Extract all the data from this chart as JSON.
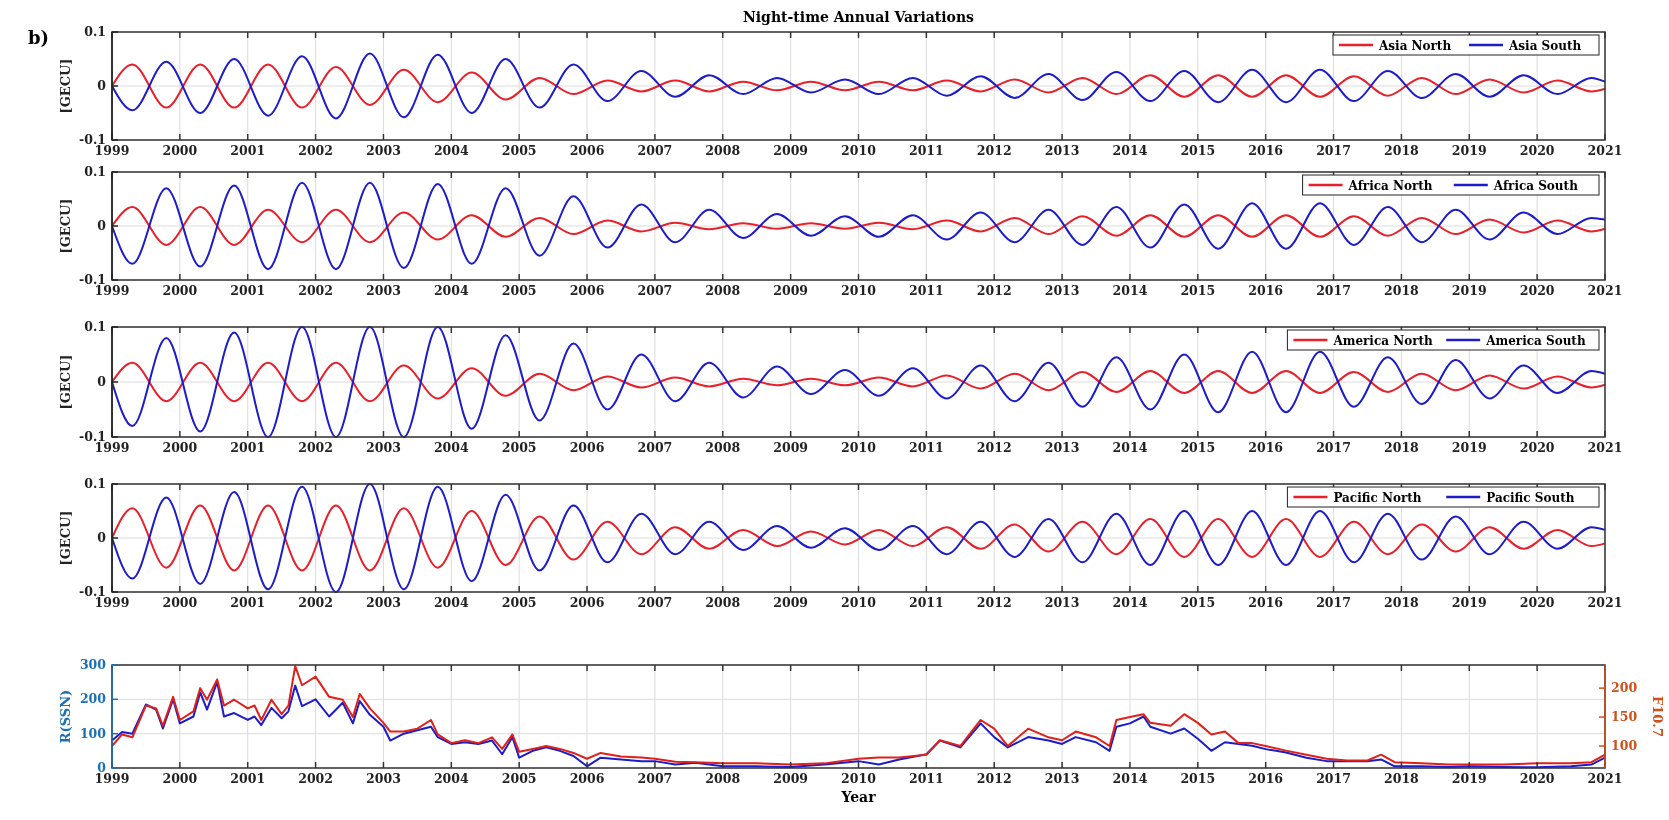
{
  "chart_data": [
    {
      "type": "line",
      "title": "Night-time Annual Variations",
      "annotations": [
        "b)"
      ],
      "ylabel": "[GECU]",
      "xlim": [
        1999,
        2021
      ],
      "xticks": [
        1999,
        2000,
        2001,
        2002,
        2003,
        2004,
        2005,
        2006,
        2007,
        2008,
        2009,
        2010,
        2011,
        2012,
        2013,
        2014,
        2015,
        2016,
        2017,
        2018,
        2019,
        2020,
        2021
      ],
      "ylim": [
        -0.1,
        0.1
      ],
      "yticks": [
        -0.1,
        0,
        0.1
      ],
      "grid": true,
      "legend": "top right",
      "x": [
        1999,
        1999.3,
        1999.8,
        2000.3,
        2000.8,
        2001.3,
        2001.8,
        2002.3,
        2002.8,
        2003.3,
        2003.8,
        2004.3,
        2004.8,
        2005.3,
        2005.8,
        2006.3,
        2006.8,
        2007.3,
        2007.8,
        2008.3,
        2008.8,
        2009.3,
        2009.8,
        2010.3,
        2010.8,
        2011.3,
        2011.8,
        2012.3,
        2012.8,
        2013.3,
        2013.8,
        2014.3,
        2014.8,
        2015.3,
        2015.8,
        2016.3,
        2016.8,
        2017.3,
        2017.8,
        2018.3,
        2018.8,
        2019.3,
        2019.8,
        2020.3,
        2020.8,
        2021
      ],
      "series": [
        {
          "name": "Asia North",
          "color": "#e8202a",
          "values": [
            0,
            0.04,
            -0.04,
            0.04,
            -0.04,
            0.04,
            -0.04,
            0.035,
            -0.035,
            0.03,
            -0.03,
            0.025,
            -0.025,
            0.015,
            -0.015,
            0.01,
            -0.01,
            0.01,
            -0.01,
            0.008,
            -0.008,
            0.008,
            -0.008,
            0.008,
            -0.008,
            0.01,
            -0.01,
            0.012,
            -0.012,
            0.015,
            -0.015,
            0.02,
            -0.02,
            0.02,
            -0.02,
            0.02,
            -0.02,
            0.018,
            -0.018,
            0.015,
            -0.015,
            0.012,
            -0.012,
            0.01,
            -0.01,
            -0.005
          ]
        },
        {
          "name": "Asia South",
          "color": "#1c1cc8",
          "values": [
            0,
            -0.045,
            0.045,
            -0.05,
            0.05,
            -0.055,
            0.055,
            -0.06,
            0.06,
            -0.058,
            0.058,
            -0.05,
            0.05,
            -0.04,
            0.04,
            -0.028,
            0.028,
            -0.02,
            0.02,
            -0.015,
            0.015,
            -0.012,
            0.012,
            -0.015,
            0.015,
            -0.018,
            0.018,
            -0.022,
            0.022,
            -0.026,
            0.026,
            -0.028,
            0.028,
            -0.03,
            0.03,
            -0.03,
            0.03,
            -0.028,
            0.028,
            -0.022,
            0.022,
            -0.02,
            0.02,
            -0.015,
            0.015,
            0.008
          ]
        }
      ]
    },
    {
      "type": "line",
      "ylabel": "[GECU]",
      "xlim": [
        1999,
        2021
      ],
      "xticks": [
        1999,
        2000,
        2001,
        2002,
        2003,
        2004,
        2005,
        2006,
        2007,
        2008,
        2009,
        2010,
        2011,
        2012,
        2013,
        2014,
        2015,
        2016,
        2017,
        2018,
        2019,
        2020,
        2021
      ],
      "ylim": [
        -0.1,
        0.1
      ],
      "yticks": [
        -0.1,
        0,
        0.1
      ],
      "grid": true,
      "legend": "top right",
      "x": [
        1999,
        1999.3,
        1999.8,
        2000.3,
        2000.8,
        2001.3,
        2001.8,
        2002.3,
        2002.8,
        2003.3,
        2003.8,
        2004.3,
        2004.8,
        2005.3,
        2005.8,
        2006.3,
        2006.8,
        2007.3,
        2007.8,
        2008.3,
        2008.8,
        2009.3,
        2009.8,
        2010.3,
        2010.8,
        2011.3,
        2011.8,
        2012.3,
        2012.8,
        2013.3,
        2013.8,
        2014.3,
        2014.8,
        2015.3,
        2015.8,
        2016.3,
        2016.8,
        2017.3,
        2017.8,
        2018.3,
        2018.8,
        2019.3,
        2019.8,
        2020.3,
        2020.8,
        2021
      ],
      "series": [
        {
          "name": "Africa North",
          "color": "#e8202a",
          "values": [
            0,
            0.035,
            -0.035,
            0.035,
            -0.035,
            0.03,
            -0.03,
            0.03,
            -0.03,
            0.025,
            -0.025,
            0.02,
            -0.02,
            0.015,
            -0.015,
            0.01,
            -0.01,
            0.006,
            -0.006,
            0.005,
            -0.005,
            0.005,
            -0.005,
            0.006,
            -0.006,
            0.01,
            -0.01,
            0.015,
            -0.015,
            0.018,
            -0.018,
            0.02,
            -0.02,
            0.02,
            -0.02,
            0.02,
            -0.02,
            0.018,
            -0.018,
            0.015,
            -0.015,
            0.012,
            -0.012,
            0.01,
            -0.01,
            -0.005
          ]
        },
        {
          "name": "Africa South",
          "color": "#1c1cc8",
          "values": [
            0,
            -0.07,
            0.07,
            -0.075,
            0.075,
            -0.08,
            0.08,
            -0.08,
            0.08,
            -0.078,
            0.078,
            -0.07,
            0.07,
            -0.055,
            0.055,
            -0.04,
            0.04,
            -0.03,
            0.03,
            -0.022,
            0.022,
            -0.018,
            0.018,
            -0.02,
            0.02,
            -0.025,
            0.025,
            -0.03,
            0.03,
            -0.035,
            0.035,
            -0.04,
            0.04,
            -0.042,
            0.042,
            -0.042,
            0.042,
            -0.035,
            0.035,
            -0.03,
            0.03,
            -0.025,
            0.025,
            -0.015,
            0.015,
            0.012
          ]
        }
      ]
    },
    {
      "type": "line",
      "ylabel": "[GECU]",
      "xlim": [
        1999,
        2021
      ],
      "xticks": [
        1999,
        2000,
        2001,
        2002,
        2003,
        2004,
        2005,
        2006,
        2007,
        2008,
        2009,
        2010,
        2011,
        2012,
        2013,
        2014,
        2015,
        2016,
        2017,
        2018,
        2019,
        2020,
        2021
      ],
      "ylim": [
        -0.1,
        0.1
      ],
      "yticks": [
        -0.1,
        0,
        0.1
      ],
      "grid": true,
      "legend": "top right",
      "x": [
        1999,
        1999.3,
        1999.8,
        2000.3,
        2000.8,
        2001.3,
        2001.8,
        2002.3,
        2002.8,
        2003.3,
        2003.8,
        2004.3,
        2004.8,
        2005.3,
        2005.8,
        2006.3,
        2006.8,
        2007.3,
        2007.8,
        2008.3,
        2008.8,
        2009.3,
        2009.8,
        2010.3,
        2010.8,
        2011.3,
        2011.8,
        2012.3,
        2012.8,
        2013.3,
        2013.8,
        2014.3,
        2014.8,
        2015.3,
        2015.8,
        2016.3,
        2016.8,
        2017.3,
        2017.8,
        2018.3,
        2018.8,
        2019.3,
        2019.8,
        2020.3,
        2020.8,
        2021
      ],
      "series": [
        {
          "name": "America North",
          "color": "#e8202a",
          "values": [
            0,
            0.035,
            -0.035,
            0.035,
            -0.035,
            0.035,
            -0.035,
            0.035,
            -0.035,
            0.03,
            -0.03,
            0.025,
            -0.025,
            0.015,
            -0.015,
            0.01,
            -0.01,
            0.008,
            -0.008,
            0.006,
            -0.006,
            0.006,
            -0.006,
            0.008,
            -0.008,
            0.012,
            -0.012,
            0.015,
            -0.015,
            0.018,
            -0.018,
            0.02,
            -0.02,
            0.02,
            -0.02,
            0.02,
            -0.02,
            0.018,
            -0.018,
            0.015,
            -0.015,
            0.012,
            -0.012,
            0.01,
            -0.01,
            -0.005
          ]
        },
        {
          "name": "America South",
          "color": "#1c1cc8",
          "values": [
            0,
            -0.08,
            0.08,
            -0.09,
            0.09,
            -0.1,
            0.1,
            -0.1,
            0.1,
            -0.1,
            0.1,
            -0.085,
            0.085,
            -0.07,
            0.07,
            -0.05,
            0.05,
            -0.035,
            0.035,
            -0.028,
            0.028,
            -0.022,
            0.022,
            -0.025,
            0.025,
            -0.03,
            0.03,
            -0.035,
            0.035,
            -0.045,
            0.045,
            -0.05,
            0.05,
            -0.055,
            0.055,
            -0.055,
            0.055,
            -0.045,
            0.045,
            -0.04,
            0.04,
            -0.03,
            0.03,
            -0.02,
            0.02,
            0.015
          ]
        }
      ]
    },
    {
      "type": "line",
      "ylabel": "[GECU]",
      "xlim": [
        1999,
        2021
      ],
      "xticks": [
        1999,
        2000,
        2001,
        2002,
        2003,
        2004,
        2005,
        2006,
        2007,
        2008,
        2009,
        2010,
        2011,
        2012,
        2013,
        2014,
        2015,
        2016,
        2017,
        2018,
        2019,
        2020,
        2021
      ],
      "ylim": [
        -0.1,
        0.1
      ],
      "yticks": [
        -0.1,
        0,
        0.1
      ],
      "grid": true,
      "legend": "top right",
      "x": [
        1999,
        1999.3,
        1999.8,
        2000.3,
        2000.8,
        2001.3,
        2001.8,
        2002.3,
        2002.8,
        2003.3,
        2003.8,
        2004.3,
        2004.8,
        2005.3,
        2005.8,
        2006.3,
        2006.8,
        2007.3,
        2007.8,
        2008.3,
        2008.8,
        2009.3,
        2009.8,
        2010.3,
        2010.8,
        2011.3,
        2011.8,
        2012.3,
        2012.8,
        2013.3,
        2013.8,
        2014.3,
        2014.8,
        2015.3,
        2015.8,
        2016.3,
        2016.8,
        2017.3,
        2017.8,
        2018.3,
        2018.8,
        2019.3,
        2019.8,
        2020.3,
        2020.8,
        2021
      ],
      "series": [
        {
          "name": "Pacific North",
          "color": "#e8202a",
          "values": [
            0,
            0.055,
            -0.055,
            0.06,
            -0.06,
            0.06,
            -0.06,
            0.06,
            -0.06,
            0.055,
            -0.055,
            0.05,
            -0.05,
            0.04,
            -0.04,
            0.03,
            -0.03,
            0.02,
            -0.02,
            0.015,
            -0.015,
            0.012,
            -0.012,
            0.015,
            -0.015,
            0.02,
            -0.02,
            0.025,
            -0.025,
            0.03,
            -0.03,
            0.035,
            -0.035,
            0.035,
            -0.035,
            0.035,
            -0.035,
            0.03,
            -0.03,
            0.025,
            -0.025,
            0.02,
            -0.02,
            0.015,
            -0.015,
            -0.01
          ]
        },
        {
          "name": "Pacific South",
          "color": "#1c1cc8",
          "values": [
            0,
            -0.075,
            0.075,
            -0.085,
            0.085,
            -0.095,
            0.095,
            -0.1,
            0.1,
            -0.095,
            0.095,
            -0.08,
            0.08,
            -0.06,
            0.06,
            -0.045,
            0.045,
            -0.03,
            0.03,
            -0.022,
            0.022,
            -0.018,
            0.018,
            -0.022,
            0.022,
            -0.03,
            0.03,
            -0.035,
            0.035,
            -0.045,
            0.045,
            -0.05,
            0.05,
            -0.05,
            0.05,
            -0.05,
            0.05,
            -0.045,
            0.045,
            -0.04,
            0.04,
            -0.03,
            0.03,
            -0.02,
            0.02,
            0.015
          ]
        }
      ]
    },
    {
      "type": "line",
      "xlabel": "Year",
      "ylabel": "R(SSN)",
      "y2label": "F10.7",
      "xlim": [
        1999,
        2021
      ],
      "xticks": [
        1999,
        2000,
        2001,
        2002,
        2003,
        2004,
        2005,
        2006,
        2007,
        2008,
        2009,
        2010,
        2011,
        2012,
        2013,
        2014,
        2015,
        2016,
        2017,
        2018,
        2019,
        2020,
        2021
      ],
      "ylim": [
        0,
        300
      ],
      "yticks": [
        0,
        100,
        200,
        300
      ],
      "y2lim": [
        62,
        240
      ],
      "y2ticks": [
        100,
        150,
        200
      ],
      "grid": true,
      "x": [
        1999,
        1999.15,
        1999.3,
        1999.5,
        1999.65,
        1999.75,
        1999.9,
        2000,
        2000.2,
        2000.3,
        2000.4,
        2000.55,
        2000.65,
        2000.8,
        2001,
        2001.1,
        2001.2,
        2001.35,
        2001.5,
        2001.6,
        2001.7,
        2001.8,
        2002,
        2002.2,
        2002.4,
        2002.55,
        2002.65,
        2002.8,
        2003,
        2003.1,
        2003.3,
        2003.5,
        2003.7,
        2003.8,
        2004,
        2004.2,
        2004.4,
        2004.6,
        2004.75,
        2004.9,
        2005,
        2005.2,
        2005.4,
        2005.6,
        2005.8,
        2006,
        2006.2,
        2006.5,
        2006.8,
        2007,
        2007.3,
        2007.6,
        2008,
        2008.5,
        2009,
        2009.5,
        2010,
        2010.3,
        2010.6,
        2011,
        2011.2,
        2011.5,
        2011.8,
        2012,
        2012.2,
        2012.5,
        2012.8,
        2013,
        2013.2,
        2013.5,
        2013.7,
        2013.8,
        2014,
        2014.2,
        2014.3,
        2014.6,
        2014.8,
        2015,
        2015.2,
        2015.4,
        2015.6,
        2015.8,
        2016,
        2016.3,
        2016.6,
        2016.9,
        2017.2,
        2017.5,
        2017.7,
        2017.9,
        2018.3,
        2018.7,
        2019,
        2019.5,
        2020,
        2020.5,
        2020.8,
        2021
      ],
      "series": [
        {
          "color": "#1c1cc8",
          "values": [
            80,
            105,
            100,
            185,
            170,
            115,
            200,
            130,
            150,
            220,
            170,
            250,
            150,
            160,
            140,
            150,
            125,
            175,
            145,
            165,
            240,
            180,
            200,
            150,
            190,
            130,
            195,
            155,
            120,
            80,
            100,
            110,
            120,
            90,
            70,
            75,
            70,
            80,
            40,
            90,
            30,
            50,
            60,
            50,
            35,
            5,
            30,
            25,
            20,
            20,
            10,
            15,
            5,
            5,
            3,
            10,
            20,
            10,
            25,
            40,
            80,
            60,
            130,
            90,
            60,
            90,
            80,
            70,
            90,
            75,
            50,
            120,
            130,
            150,
            120,
            100,
            115,
            85,
            50,
            75,
            70,
            65,
            55,
            45,
            30,
            20,
            20,
            20,
            25,
            5,
            5,
            3,
            5,
            3,
            2,
            5,
            10,
            30
          ]
        },
        {
          "color": "#e0201a",
          "axis": "y2",
          "values": [
            100,
            120,
            115,
            170,
            165,
            135,
            185,
            145,
            160,
            200,
            180,
            215,
            170,
            180,
            165,
            170,
            145,
            180,
            155,
            170,
            238,
            205,
            220,
            185,
            180,
            150,
            190,
            165,
            140,
            125,
            125,
            130,
            145,
            120,
            105,
            110,
            105,
            115,
            95,
            120,
            90,
            95,
            100,
            95,
            88,
            78,
            88,
            82,
            80,
            78,
            73,
            72,
            70,
            70,
            68,
            70,
            78,
            80,
            80,
            85,
            110,
            100,
            145,
            130,
            100,
            130,
            115,
            110,
            125,
            115,
            100,
            145,
            150,
            155,
            140,
            135,
            155,
            140,
            120,
            125,
            105,
            105,
            100,
            92,
            85,
            78,
            75,
            75,
            85,
            72,
            70,
            68,
            68,
            68,
            70,
            70,
            72,
            85
          ]
        }
      ]
    }
  ]
}
